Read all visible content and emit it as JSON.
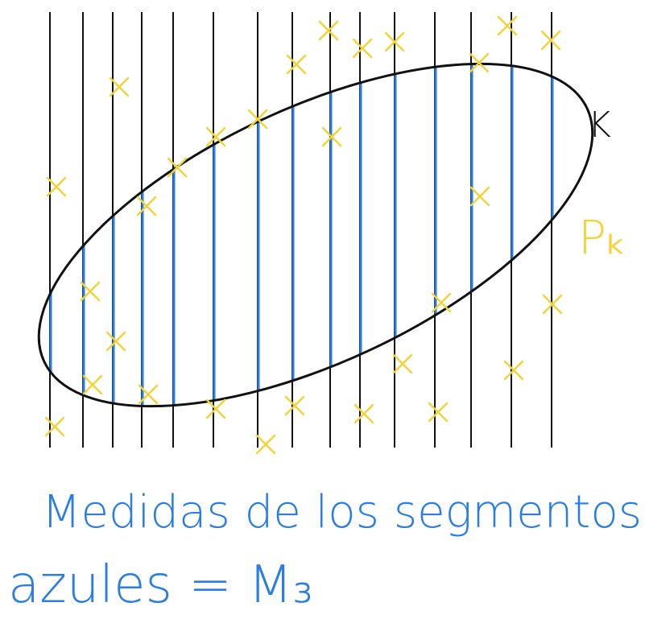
{
  "labels": {
    "set": "K",
    "points": "Pₖ"
  },
  "caption": [
    "Medidas de los segmentos",
    "azules = M₃"
  ]
}
